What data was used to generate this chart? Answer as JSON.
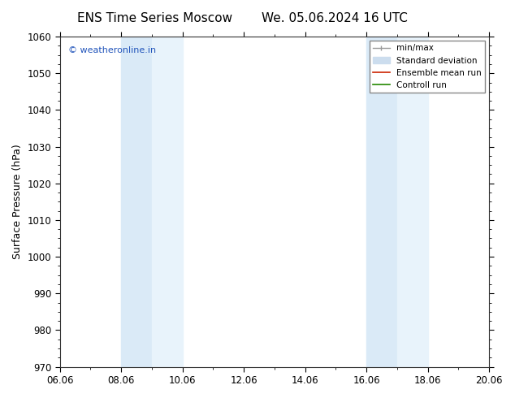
{
  "title_left": "ENS Time Series Moscow",
  "title_right": "We. 05.06.2024 16 UTC",
  "ylabel": "Surface Pressure (hPa)",
  "ylim": [
    970,
    1060
  ],
  "yticks": [
    970,
    980,
    990,
    1000,
    1010,
    1020,
    1030,
    1040,
    1050,
    1060
  ],
  "xlim_start": 0,
  "xlim_end": 14,
  "xtick_labels": [
    "06.06",
    "08.06",
    "10.06",
    "12.06",
    "14.06",
    "16.06",
    "18.06",
    "20.06"
  ],
  "xtick_positions": [
    0,
    2,
    4,
    6,
    8,
    10,
    12,
    14
  ],
  "shaded_bands": [
    {
      "xstart": 2,
      "xend": 3
    },
    {
      "xstart": 3,
      "xend": 4
    },
    {
      "xstart": 10,
      "xend": 11
    },
    {
      "xstart": 11,
      "xend": 12
    }
  ],
  "band_color": "#daeaf7",
  "band_color2": "#e8f3fb",
  "watermark_text": "© weatheronline.in",
  "watermark_color": "#2255bb",
  "legend_entries": [
    {
      "label": "min/max",
      "color": "#999999",
      "lw": 1.0,
      "style": "solid"
    },
    {
      "label": "Standard deviation",
      "color": "#ccddee",
      "lw": 5,
      "style": "solid"
    },
    {
      "label": "Ensemble mean run",
      "color": "#cc2200",
      "lw": 1.2,
      "style": "solid"
    },
    {
      "label": "Controll run",
      "color": "#228800",
      "lw": 1.2,
      "style": "solid"
    }
  ],
  "background_color": "#ffffff",
  "title_fontsize": 11,
  "axis_label_fontsize": 9,
  "tick_fontsize": 8.5
}
